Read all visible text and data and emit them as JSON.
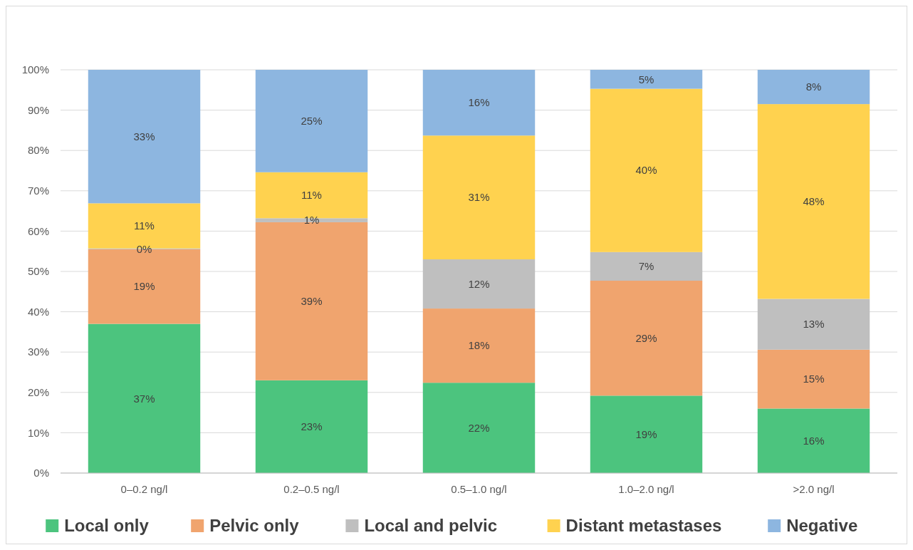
{
  "chart_data": {
    "type": "bar",
    "stacked": true,
    "categories": [
      "0–0.2 ng/l",
      "0.2–0.5 ng/l",
      "0.5–1.0 ng/l",
      "1.0–2.0 ng/l",
      ">2.0 ng/l"
    ],
    "series": [
      {
        "name": "Local only",
        "color": "#4cc47e",
        "values": [
          37,
          23,
          22.4,
          19.2,
          16
        ],
        "value_labels": [
          "37%",
          "23%",
          "22%",
          "19%",
          "16%"
        ]
      },
      {
        "name": "Pelvic only",
        "color": "#f0a46e",
        "values": [
          18.5,
          39.2,
          18.4,
          28.5,
          14.6
        ],
        "value_labels": [
          "19%",
          "39%",
          "18%",
          "29%",
          "15%"
        ]
      },
      {
        "name": "Local and pelvic",
        "color": "#bfbfbf",
        "values": [
          0.2,
          1,
          12.2,
          7.1,
          12.6
        ],
        "value_labels": [
          "0%",
          "1%",
          "12%",
          "7%",
          "13%"
        ]
      },
      {
        "name": "Distant metastases",
        "color": "#ffd24f",
        "values": [
          11.2,
          11.4,
          30.7,
          40.5,
          48.3
        ],
        "value_labels": [
          "11%",
          "11%",
          "31%",
          "40%",
          "48%"
        ]
      },
      {
        "name": "Negative",
        "color": "#8db6e0",
        "values": [
          33.1,
          25.4,
          16.3,
          4.7,
          8.5
        ],
        "value_labels": [
          "33%",
          "25%",
          "16%",
          "5%",
          "8%"
        ]
      }
    ],
    "ylim": [
      0,
      100
    ],
    "yticks": [
      {
        "value": 0,
        "label": "0%"
      },
      {
        "value": 10,
        "label": "10%"
      },
      {
        "value": 20,
        "label": "20%"
      },
      {
        "value": 30,
        "label": "30%"
      },
      {
        "value": 40,
        "label": "40%"
      },
      {
        "value": 50,
        "label": "50%"
      },
      {
        "value": 60,
        "label": "60%"
      },
      {
        "value": 70,
        "label": "70%"
      },
      {
        "value": 80,
        "label": "80%"
      },
      {
        "value": 90,
        "label": "90%"
      },
      {
        "value": 100,
        "label": "100%"
      }
    ],
    "grid": "y",
    "legend": "bottom"
  }
}
